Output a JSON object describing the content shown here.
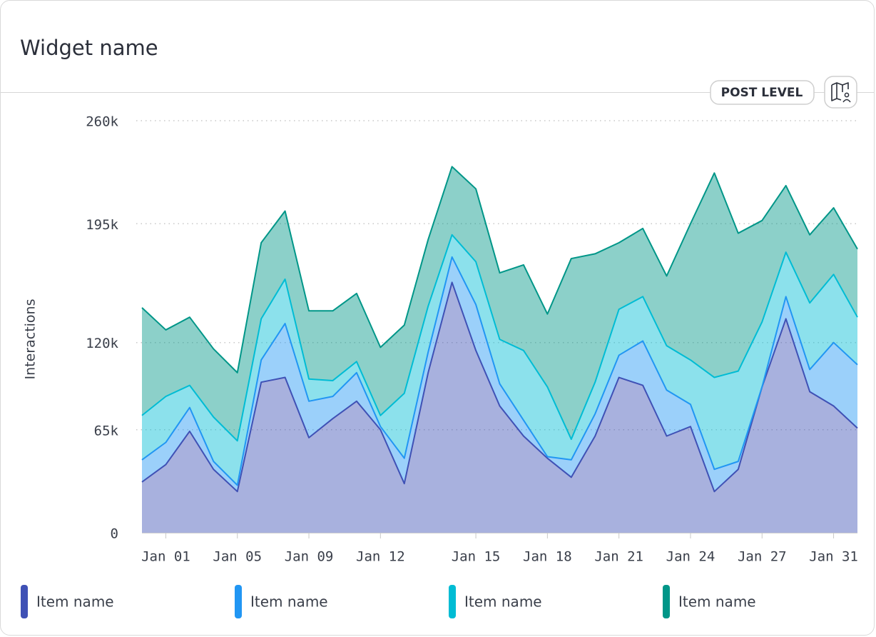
{
  "header": {
    "title": "Widget name",
    "badge": "POST LEVEL"
  },
  "chart_data": {
    "type": "stacked_area",
    "y_label": "Interactions",
    "categories": [
      null,
      "Jan 01",
      null,
      null,
      "Jan 05",
      null,
      null,
      "Jan 09",
      null,
      null,
      "Jan 12",
      null,
      null,
      null,
      "Jan 15",
      null,
      null,
      "Jan 18",
      null,
      null,
      "Jan 21",
      null,
      null,
      "Jan 24",
      null,
      null,
      "Jan 27",
      null,
      null,
      "Jan 31",
      null
    ],
    "ylim": [
      0,
      260000
    ],
    "yticks": [
      0,
      {
        "value": 65000,
        "label": "65k"
      },
      {
        "value": 120000,
        "label": "120k"
      },
      {
        "value": 195000,
        "label": "195k"
      },
      {
        "value": 260000,
        "label": "260k"
      }
    ],
    "grid": true,
    "series": [
      {
        "name": "Item name",
        "color": "#3f51b5",
        "values": [
          32000,
          43000,
          64000,
          40000,
          26000,
          95000,
          98000,
          60000,
          72000,
          83000,
          65000,
          31000,
          101000,
          158000,
          115000,
          80000,
          61000,
          47000,
          35000,
          61000,
          98000,
          93000,
          61000,
          67000,
          26000,
          40000,
          92000,
          135000,
          89000,
          80000,
          66000
        ]
      },
      {
        "name": "Item name",
        "color": "#2196f3",
        "values": [
          14000,
          14000,
          15000,
          5000,
          4000,
          14000,
          34000,
          23000,
          14000,
          18000,
          2000,
          16000,
          13000,
          16000,
          29000,
          14000,
          10000,
          1000,
          11000,
          14000,
          14000,
          28000,
          29000,
          14000,
          14000,
          5000,
          0,
          14000,
          14000,
          40000,
          40000
        ]
      },
      {
        "name": "Item name",
        "color": "#00bcd4",
        "values": [
          28000,
          29000,
          14000,
          28000,
          28000,
          26000,
          28000,
          14000,
          10000,
          7000,
          7000,
          41000,
          29000,
          14000,
          27000,
          28000,
          44000,
          44000,
          13000,
          20000,
          29000,
          28000,
          28000,
          28000,
          58000,
          57000,
          41000,
          28000,
          42000,
          43000,
          30000
        ]
      },
      {
        "name": "Item name",
        "color": "#009688",
        "values": [
          68000,
          42000,
          43000,
          43000,
          43000,
          48000,
          43000,
          43000,
          44000,
          43000,
          43000,
          43000,
          42000,
          43000,
          46000,
          42000,
          54000,
          46000,
          114000,
          81000,
          42000,
          43000,
          44000,
          86000,
          129000,
          87000,
          64000,
          42000,
          43000,
          42000,
          43000
        ]
      }
    ]
  }
}
